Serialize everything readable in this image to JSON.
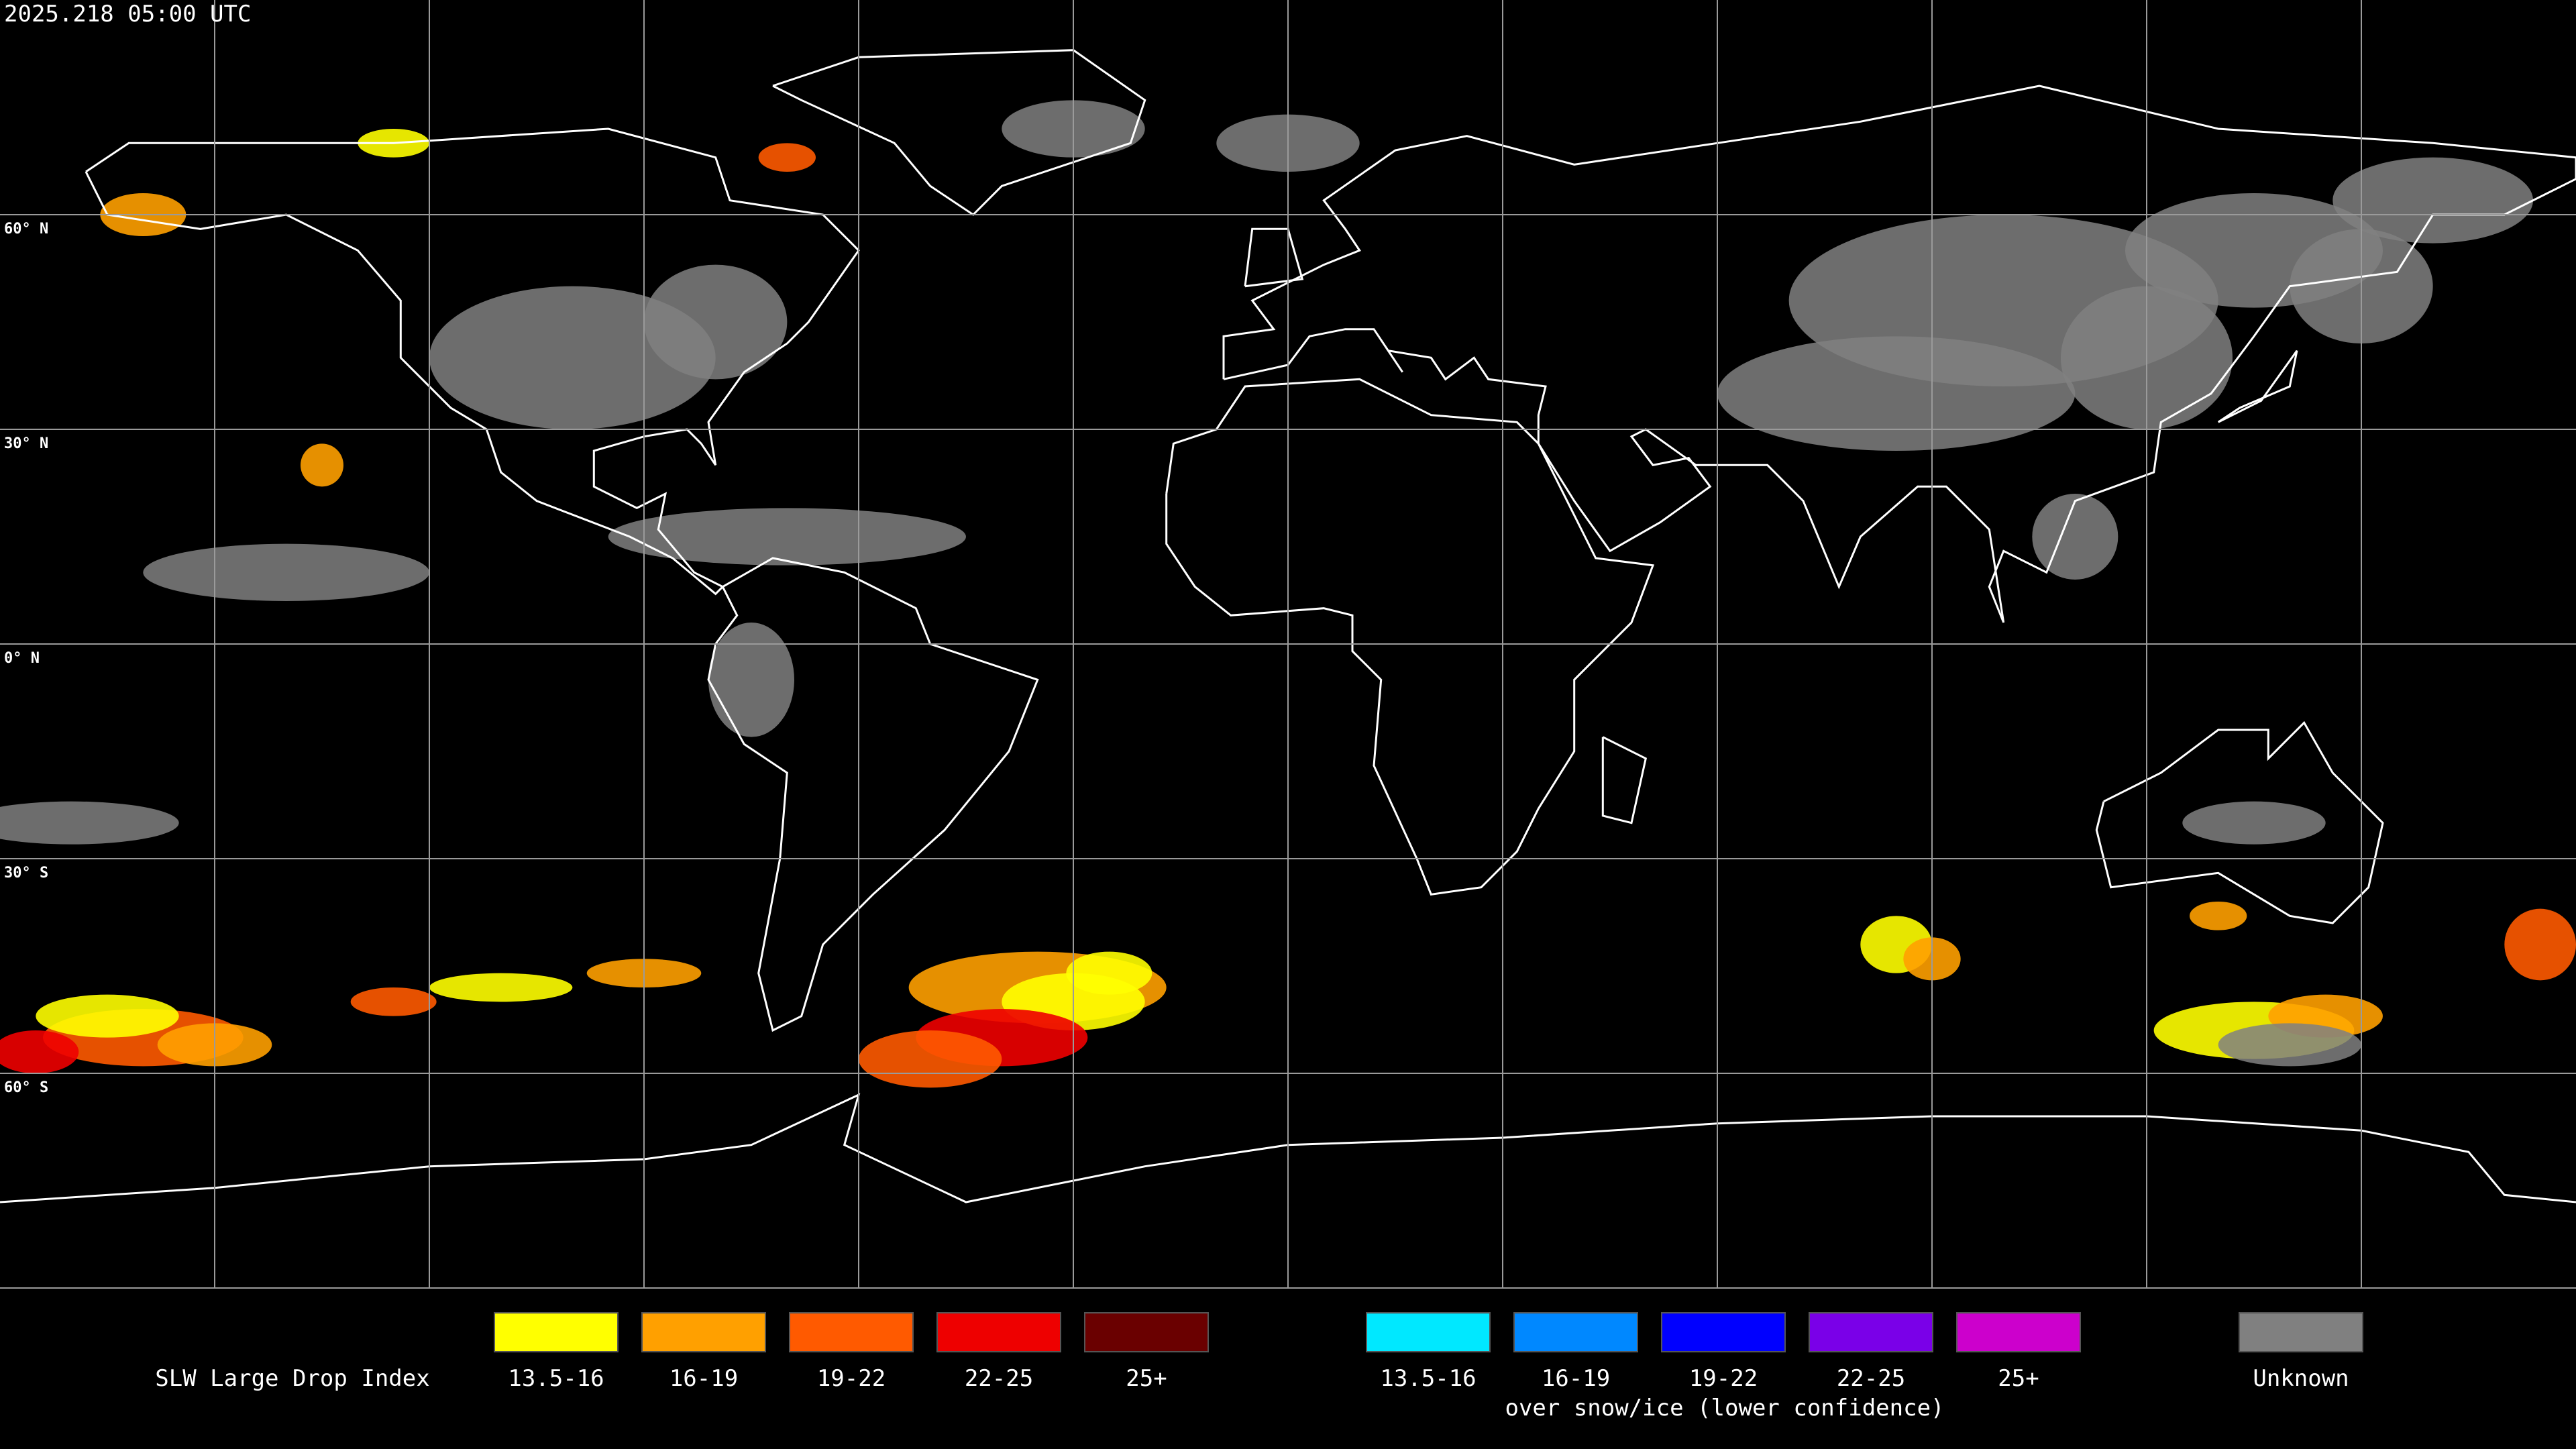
{
  "header": {
    "timestamp": "2025.218 05:00 UTC"
  },
  "map": {
    "lat_labels": [
      "60° N",
      "30° N",
      "0° N",
      "30° S",
      "60° S"
    ]
  },
  "legend": {
    "title": "SLW Large Drop Index",
    "groups": [
      {
        "items": [
          {
            "label": "13.5-16",
            "color": "#ffff00"
          },
          {
            "label": "16-19",
            "color": "#ffa000"
          },
          {
            "label": "19-22",
            "color": "#ff5a00"
          },
          {
            "label": "22-25",
            "color": "#ee0000"
          },
          {
            "label": "25+",
            "color": "#6a0000"
          }
        ]
      },
      {
        "items": [
          {
            "label": "13.5-16",
            "color": "#00e8ff"
          },
          {
            "label": "16-19",
            "color": "#0088ff"
          },
          {
            "label": "19-22",
            "color": "#0000ff"
          },
          {
            "label": "22-25",
            "color": "#7a00e8"
          },
          {
            "label": "25+",
            "color": "#cc00cc"
          }
        ],
        "caption": "over snow/ice (lower confidence)"
      }
    ],
    "unknown": {
      "label": "Unknown",
      "color": "#808080"
    }
  }
}
